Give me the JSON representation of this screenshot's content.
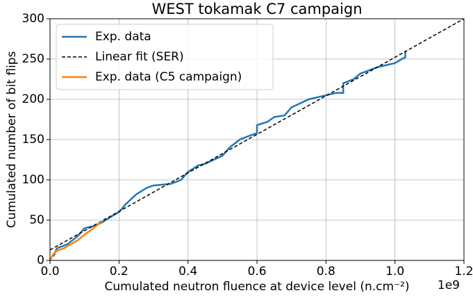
{
  "chart_data": {
    "type": "line",
    "title": "WEST tokamak C7 campaign",
    "x_label": "Cumulated neutron fluence at device level (n.cm⁻²)",
    "y_label": "Cumulated number of bit flips",
    "x_offset_label": "1e9",
    "xlim": [
      0,
      1.2
    ],
    "ylim": [
      0,
      300
    ],
    "xticks": [
      {
        "value": 0,
        "label": "0.0"
      },
      0.2,
      0.4,
      0.6,
      0.8,
      {
        "value": 1,
        "label": "1.0"
      },
      1.2
    ],
    "yticks": [
      0,
      50,
      100,
      150,
      200,
      250,
      300
    ],
    "grid": true,
    "legend": "upper left",
    "series": [
      {
        "name": "Exp. data",
        "color": "#1f77b4",
        "linestyle": "solid",
        "x": [
          0.01,
          0.02,
          0.05,
          0.08,
          0.1,
          0.13,
          0.15,
          0.18,
          0.2,
          0.22,
          0.25,
          0.28,
          0.3,
          0.35,
          0.38,
          0.4,
          0.43,
          0.45,
          0.5,
          0.52,
          0.55,
          0.58,
          0.6,
          0.6,
          0.63,
          0.65,
          0.68,
          0.7,
          0.75,
          0.8,
          0.83,
          0.85,
          0.85,
          0.88,
          0.9,
          0.95,
          1.0,
          1.02,
          1.03,
          1.03
        ],
        "values": [
          5,
          15,
          20,
          30,
          40,
          43,
          47,
          55,
          60,
          70,
          82,
          90,
          93,
          95,
          100,
          110,
          118,
          120,
          130,
          140,
          150,
          155,
          158,
          168,
          172,
          178,
          180,
          190,
          200,
          205,
          208,
          208,
          220,
          225,
          232,
          240,
          245,
          250,
          252,
          260
        ]
      },
      {
        "name": "Linear fit (SER)",
        "color": "#000000",
        "linestyle": "dashed",
        "x": [
          0,
          1.2
        ],
        "values": [
          13,
          300
        ]
      },
      {
        "name": "Exp. data (C5 campaign)",
        "color": "#ff7f0e",
        "linestyle": "solid",
        "x": [
          0,
          0.01,
          0.02,
          0.04,
          0.06,
          0.08,
          0.1,
          0.12,
          0.14,
          0.15
        ],
        "values": [
          0,
          8,
          12,
          15,
          20,
          25,
          32,
          38,
          45,
          48
        ]
      }
    ]
  }
}
